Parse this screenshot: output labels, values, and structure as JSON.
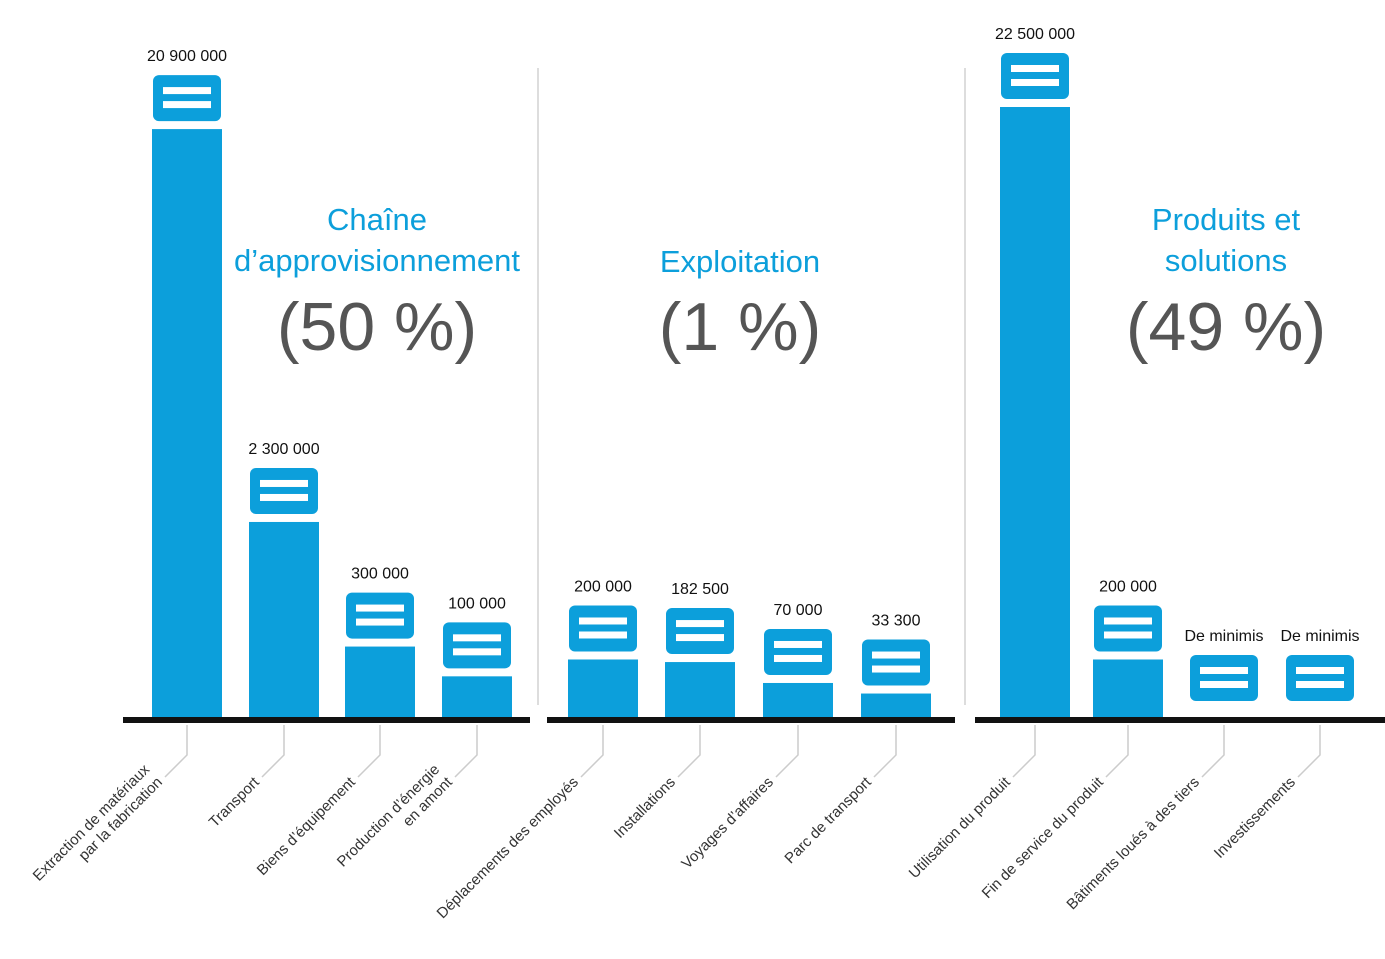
{
  "chart_data": [
    {
      "type": "bar",
      "title": [
        "Chaîne",
        "d’approvisionnement"
      ],
      "subtitle": "(50 %)",
      "color": "#0c9fdb",
      "yscale": "sqrt",
      "ylim": [
        0,
        22500000
      ],
      "categories": [
        [
          "Extraction de matériaux",
          "par la fabrication"
        ],
        [
          "Transport"
        ],
        [
          "Biens d’équipement"
        ],
        [
          "Production d’énergie",
          "en amont"
        ]
      ],
      "values": [
        20900000,
        2300000,
        300000,
        100000
      ],
      "value_labels": [
        "20 900 000",
        "2 300 000",
        "300 000",
        "100 000"
      ]
    },
    {
      "type": "bar",
      "title": [
        "Exploitation"
      ],
      "subtitle": "(1 %)",
      "color": "#0c9fdb",
      "yscale": "sqrt",
      "ylim": [
        0,
        22500000
      ],
      "categories": [
        [
          "Déplacements des employés"
        ],
        [
          "Installations"
        ],
        [
          "Voyages d’affaires"
        ],
        [
          "Parc de transport"
        ]
      ],
      "values": [
        200000,
        182500,
        70000,
        33300
      ],
      "value_labels": [
        "200 000",
        "182 500",
        "70 000",
        "33 300"
      ]
    },
    {
      "type": "bar",
      "title": [
        "Produits et",
        "solutions"
      ],
      "subtitle": "(49 %)",
      "color": "#0c9fdb",
      "yscale": "sqrt",
      "ylim": [
        0,
        22500000
      ],
      "categories": [
        [
          "Utilisation du produit"
        ],
        [
          "Fin de service du produit"
        ],
        [
          "Bâtiments loués à des tiers"
        ],
        [
          "Investissements"
        ]
      ],
      "values": [
        22500000,
        200000,
        null,
        null
      ],
      "value_labels": [
        "22 500 000",
        "200 000",
        "De minimis",
        "De minimis"
      ]
    }
  ]
}
